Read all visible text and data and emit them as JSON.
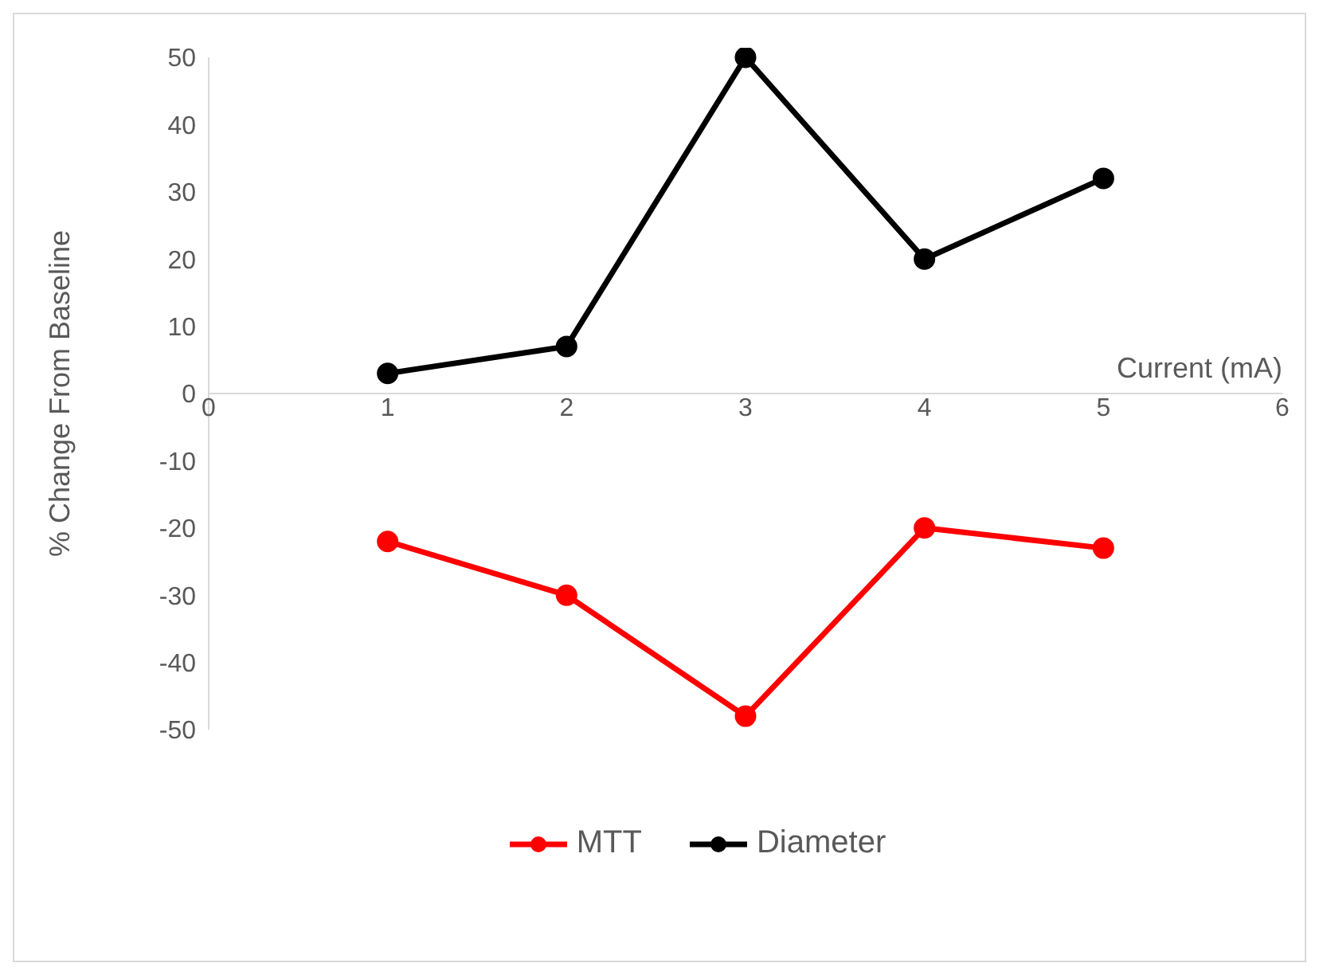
{
  "chart_data": {
    "type": "line",
    "xlabel": "Current (mA)",
    "ylabel": "% Change From Baseline",
    "x": [
      1,
      2,
      3,
      4,
      5
    ],
    "series": [
      {
        "name": "MTT",
        "color": "#ff0000",
        "values": [
          -22,
          -30,
          -48,
          -20,
          -23
        ]
      },
      {
        "name": "Diameter",
        "color": "#000000",
        "values": [
          3,
          7,
          50,
          20,
          32
        ]
      }
    ],
    "xlim": [
      0,
      6
    ],
    "xticks": [
      0,
      1,
      2,
      3,
      4,
      5,
      6
    ],
    "ylim": [
      -50,
      50
    ],
    "yticks": [
      -50,
      -40,
      -30,
      -20,
      -10,
      0,
      10,
      20,
      30,
      40,
      50
    ],
    "grid": false,
    "legend": "bottom",
    "marker": "circle",
    "line_style": "solid"
  }
}
